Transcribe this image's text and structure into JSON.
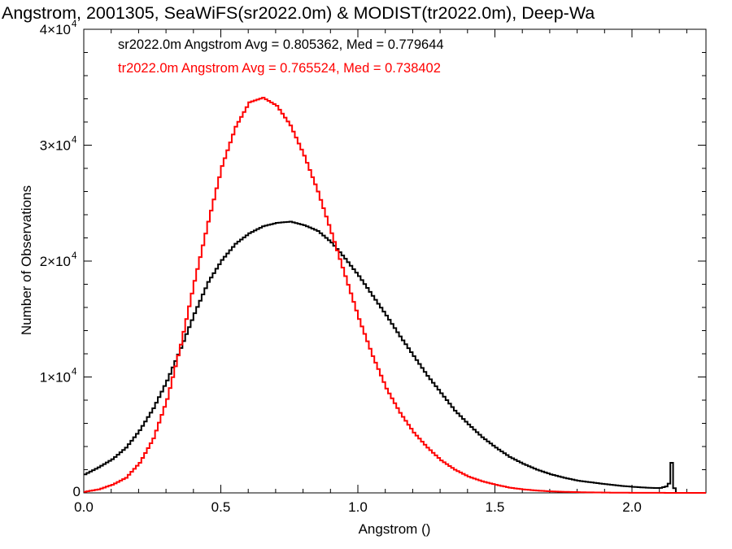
{
  "chart_data": {
    "type": "line",
    "title": "Angstrom, 2001305, SeaWiFS(sr2022.0m) & MODIST(tr2022.0m), Deep-Wa",
    "xlabel": "Angstrom ()",
    "ylabel": "Number of Observations",
    "xlim": [
      0,
      2.27
    ],
    "ylim": [
      0,
      40000
    ],
    "x_ticks": [
      "0.0",
      "0.5",
      "1.0",
      "1.5",
      "2.0"
    ],
    "y_ticks": [
      {
        "value": 0,
        "mantissa": "0",
        "exponent": ""
      },
      {
        "value": 10000,
        "mantissa": "1×10",
        "exponent": "4"
      },
      {
        "value": 20000,
        "mantissa": "2×10",
        "exponent": "4"
      },
      {
        "value": 30000,
        "mantissa": "3×10",
        "exponent": "4"
      },
      {
        "value": 40000,
        "mantissa": "4×10",
        "exponent": "4"
      }
    ],
    "annotations": [
      {
        "text": "sr2022.0m Angstrom Avg = 0.805362, Med = 0.779644",
        "color": "#000000"
      },
      {
        "text": "tr2022.0m Angstrom Avg = 0.765524, Med = 0.738402",
        "color": "#ff0000"
      }
    ],
    "series": [
      {
        "color": "#000000",
        "x": [
          0.0,
          0.05,
          0.1,
          0.15,
          0.2,
          0.25,
          0.3,
          0.35,
          0.4,
          0.45,
          0.5,
          0.55,
          0.6,
          0.65,
          0.7,
          0.75,
          0.8,
          0.85,
          0.9,
          0.95,
          1.0,
          1.05,
          1.1,
          1.15,
          1.2,
          1.25,
          1.3,
          1.35,
          1.4,
          1.45,
          1.5,
          1.55,
          1.6,
          1.65,
          1.7,
          1.75,
          1.8,
          1.85,
          1.9,
          1.95,
          2.0,
          2.05,
          2.08,
          2.1,
          2.12,
          2.13,
          2.14,
          2.15,
          2.16
        ],
        "values": [
          1600,
          2200,
          2900,
          3900,
          5400,
          7300,
          9700,
          12500,
          15500,
          18200,
          20100,
          21500,
          22400,
          23000,
          23300,
          23400,
          23100,
          22600,
          21600,
          20200,
          18700,
          17000,
          15300,
          13500,
          11800,
          10100,
          8600,
          7100,
          5900,
          4800,
          3900,
          3100,
          2500,
          2000,
          1600,
          1300,
          1050,
          900,
          750,
          620,
          520,
          450,
          420,
          430,
          550,
          800,
          2600,
          400,
          0
        ]
      },
      {
        "color": "#ff0000",
        "x": [
          0.0,
          0.05,
          0.1,
          0.15,
          0.2,
          0.25,
          0.3,
          0.35,
          0.4,
          0.45,
          0.5,
          0.55,
          0.6,
          0.65,
          0.7,
          0.75,
          0.8,
          0.85,
          0.9,
          0.95,
          1.0,
          1.05,
          1.1,
          1.15,
          1.2,
          1.25,
          1.3,
          1.35,
          1.4,
          1.45,
          1.5,
          1.55,
          1.6,
          1.65,
          1.7,
          1.75,
          1.8,
          1.85,
          1.9,
          2.0,
          2.1,
          2.27
        ],
        "values": [
          100,
          300,
          700,
          1300,
          2600,
          4700,
          8100,
          12800,
          18300,
          23400,
          28200,
          31600,
          33700,
          34100,
          33400,
          31700,
          29100,
          26000,
          22400,
          18700,
          15000,
          11800,
          9000,
          6900,
          5200,
          3900,
          2800,
          2000,
          1400,
          1000,
          700,
          450,
          300,
          200,
          130,
          90,
          60,
          40,
          25,
          10,
          5,
          0
        ]
      }
    ]
  }
}
